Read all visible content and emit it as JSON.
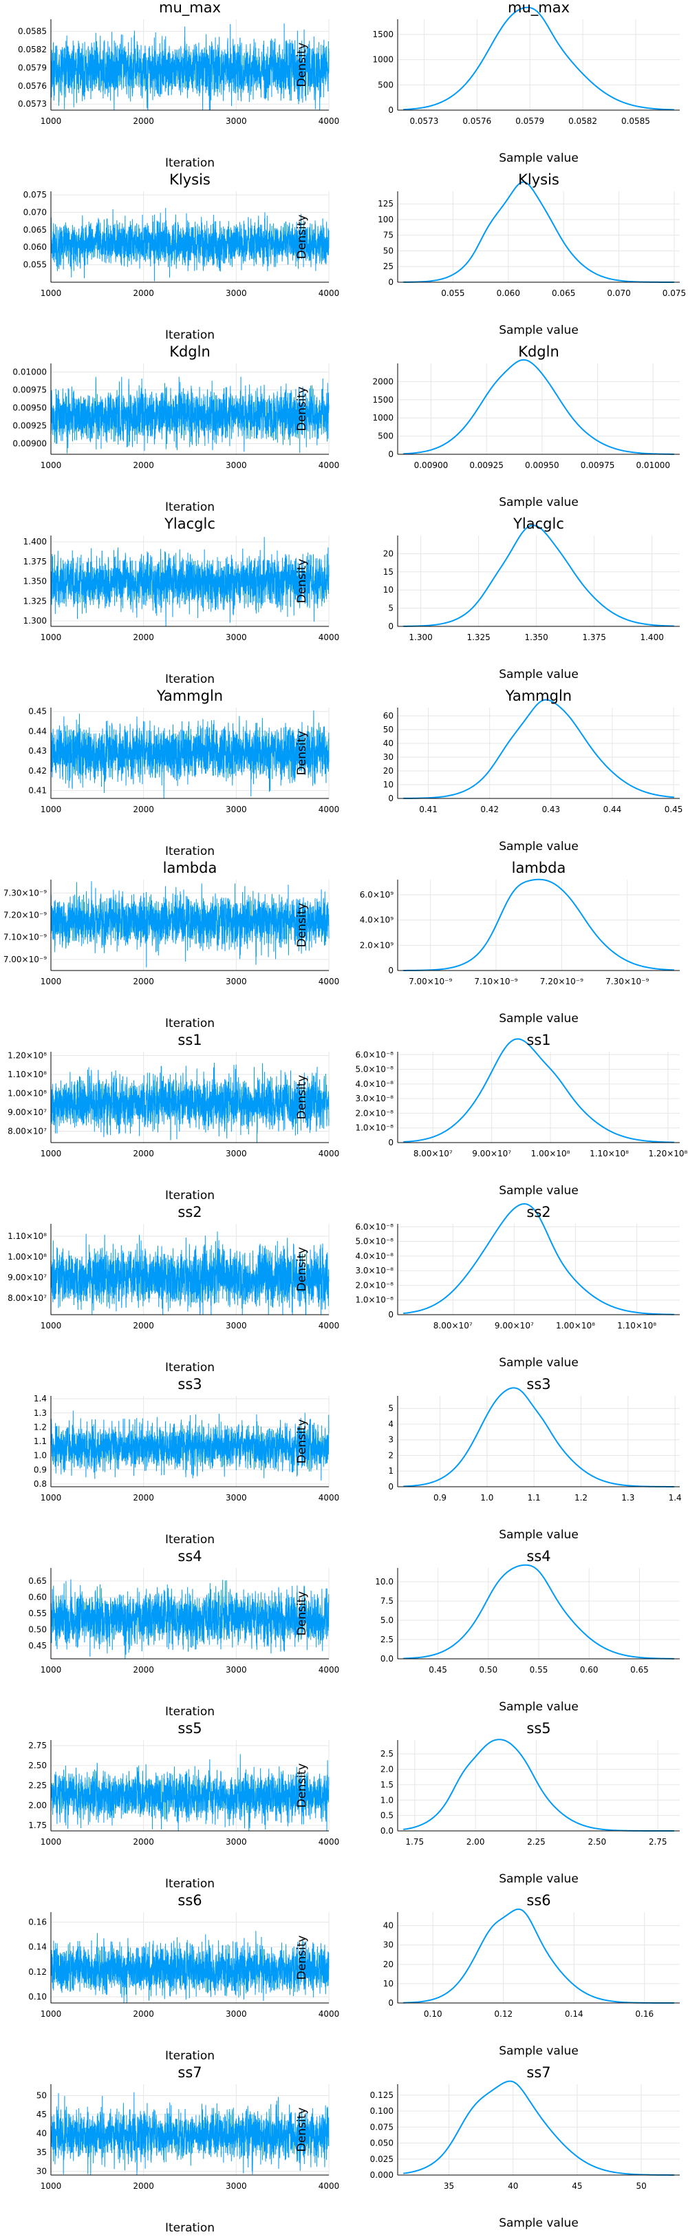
{
  "colors": {
    "series": "#009af9",
    "grid": "#e6e6e6",
    "axis": "#000000"
  },
  "chart_data": [
    {
      "param": "mu_max",
      "trace": {
        "type": "line",
        "title": "mu_max",
        "xlabel": "Iteration",
        "xlim": [
          1000,
          4000
        ],
        "xticks": [
          1000,
          2000,
          3000,
          4000
        ],
        "ylim": [
          0.0572,
          0.0587
        ],
        "ytick_labels": [
          "0.0573",
          "0.0576",
          "0.0579",
          "0.0582",
          "0.0585"
        ],
        "ytick_values": [
          0.0573,
          0.0576,
          0.0579,
          0.0582,
          0.0585
        ],
        "mean": 0.05787,
        "sd": 0.00022
      },
      "density": {
        "type": "line",
        "title": "mu_max",
        "xlabel": "Sample value",
        "ylabel": "Density",
        "xlim": [
          0.05715,
          0.05875
        ],
        "xtick_labels": [
          "0.0573",
          "0.0576",
          "0.0579",
          "0.0582",
          "0.0585"
        ],
        "xtick_values": [
          0.0573,
          0.0576,
          0.0579,
          0.0582,
          0.0585
        ],
        "ylim": [
          0,
          1800
        ],
        "ytick_labels": [
          "0",
          "500",
          "1000",
          "1500"
        ],
        "ytick_values": [
          0,
          500,
          1000,
          1500
        ],
        "peak_x": 0.05787,
        "peak_y": 1700,
        "spread": 0.00023
      }
    },
    {
      "param": "Klysis",
      "trace": {
        "type": "line",
        "title": "Klysis",
        "xlabel": "Iteration",
        "xlim": [
          1000,
          4000
        ],
        "xticks": [
          1000,
          2000,
          3000,
          4000
        ],
        "ylim": [
          0.05,
          0.076
        ],
        "ytick_labels": [
          "0.055",
          "0.060",
          "0.065",
          "0.070",
          "0.075"
        ],
        "ytick_values": [
          0.055,
          0.06,
          0.065,
          0.07,
          0.075
        ],
        "mean": 0.061,
        "sd": 0.003
      },
      "density": {
        "type": "line",
        "title": "Klysis",
        "xlabel": "Sample value",
        "ylabel": "Density",
        "xlim": [
          0.05,
          0.0755
        ],
        "xtick_labels": [
          "0.055",
          "0.060",
          "0.065",
          "0.070",
          "0.075"
        ],
        "xtick_values": [
          0.055,
          0.06,
          0.065,
          0.07,
          0.075
        ],
        "ylim": [
          0,
          145
        ],
        "ytick_labels": [
          "0",
          "25",
          "50",
          "75",
          "100",
          "125"
        ],
        "ytick_values": [
          0,
          25,
          50,
          75,
          100,
          125
        ],
        "peak_x": 0.061,
        "peak_y": 135,
        "spread": 0.0029
      }
    },
    {
      "param": "Kdgln",
      "trace": {
        "type": "line",
        "title": "Kdgln",
        "xlabel": "Iteration",
        "xlim": [
          1000,
          4000
        ],
        "xticks": [
          1000,
          2000,
          3000,
          4000
        ],
        "ylim": [
          0.00885,
          0.01012
        ],
        "ytick_labels": [
          "0.00900",
          "0.00925",
          "0.00950",
          "0.00975",
          "0.01000"
        ],
        "ytick_values": [
          0.009,
          0.00925,
          0.0095,
          0.00975,
          0.01
        ],
        "mean": 0.00939,
        "sd": 0.00017
      },
      "density": {
        "type": "line",
        "title": "Kdgln",
        "xlabel": "Sample value",
        "ylabel": "Density",
        "xlim": [
          0.00885,
          0.01012
        ],
        "xtick_labels": [
          "0.00900",
          "0.00925",
          "0.00950",
          "0.00975",
          "0.01000"
        ],
        "xtick_values": [
          0.009,
          0.00925,
          0.0095,
          0.00975,
          0.01
        ],
        "ylim": [
          0,
          2500
        ],
        "ytick_labels": [
          "0",
          "500",
          "1000",
          "1500",
          "2000"
        ],
        "ytick_values": [
          0,
          500,
          1000,
          1500,
          2000
        ],
        "peak_x": 0.00939,
        "peak_y": 2300,
        "spread": 0.00017
      }
    },
    {
      "param": "Ylacglc",
      "trace": {
        "type": "line",
        "title": "Ylacglc",
        "xlabel": "Iteration",
        "xlim": [
          1000,
          4000
        ],
        "xticks": [
          1000,
          2000,
          3000,
          4000
        ],
        "ylim": [
          1.293,
          1.408
        ],
        "ytick_labels": [
          "1.300",
          "1.325",
          "1.350",
          "1.375",
          "1.400"
        ],
        "ytick_values": [
          1.3,
          1.325,
          1.35,
          1.375,
          1.4
        ],
        "mean": 1.349,
        "sd": 0.016
      },
      "density": {
        "type": "line",
        "title": "Ylacglc",
        "xlabel": "Sample value",
        "ylabel": "Density",
        "xlim": [
          1.29,
          1.412
        ],
        "xtick_labels": [
          "1.300",
          "1.325",
          "1.350",
          "1.375",
          "1.400"
        ],
        "xtick_values": [
          1.3,
          1.325,
          1.35,
          1.375,
          1.4
        ],
        "ylim": [
          0,
          25
        ],
        "ytick_labels": [
          "0",
          "5",
          "10",
          "15",
          "20"
        ],
        "ytick_values": [
          0,
          5,
          10,
          15,
          20
        ],
        "peak_x": 1.349,
        "peak_y": 23.5,
        "spread": 0.016
      }
    },
    {
      "param": "Yammgln",
      "trace": {
        "type": "line",
        "title": "Yammgln",
        "xlabel": "Iteration",
        "xlim": [
          1000,
          4000
        ],
        "xticks": [
          1000,
          2000,
          3000,
          4000
        ],
        "ylim": [
          0.406,
          0.452
        ],
        "ytick_labels": [
          "0.41",
          "0.42",
          "0.43",
          "0.44",
          "0.45"
        ],
        "ytick_values": [
          0.41,
          0.42,
          0.43,
          0.44,
          0.45
        ],
        "mean": 0.4292,
        "sd": 0.0065
      },
      "density": {
        "type": "line",
        "title": "Yammgln",
        "xlabel": "Sample value",
        "ylabel": "Density",
        "xlim": [
          0.405,
          0.451
        ],
        "xtick_labels": [
          "0.41",
          "0.42",
          "0.43",
          "0.44",
          "0.45"
        ],
        "xtick_values": [
          0.41,
          0.42,
          0.43,
          0.44,
          0.45
        ],
        "ylim": [
          0,
          66
        ],
        "ytick_labels": [
          "0",
          "10",
          "20",
          "30",
          "40",
          "50",
          "60"
        ],
        "ytick_values": [
          0,
          10,
          20,
          30,
          40,
          50,
          60
        ],
        "peak_x": 0.4292,
        "peak_y": 62,
        "spread": 0.0064
      }
    },
    {
      "param": "lambda",
      "trace": {
        "type": "line",
        "title": "lambda",
        "xlabel": "Iteration",
        "xlim": [
          1000,
          4000
        ],
        "xticks": [
          1000,
          2000,
          3000,
          4000
        ],
        "ylim": [
          6.95e-09,
          7.36e-09
        ],
        "ytick_labels": [
          "7.00×10⁻⁹",
          "7.10×10⁻⁹",
          "7.20×10⁻⁹",
          "7.30×10⁻⁹"
        ],
        "ytick_values": [
          7e-09,
          7.1e-09,
          7.2e-09,
          7.3e-09
        ],
        "mean": 7.17e-09,
        "sd": 5.5e-11
      },
      "density": {
        "type": "line",
        "title": "lambda",
        "xlabel": "Sample value",
        "ylabel": "Density",
        "xlim": [
          6.95e-09,
          7.38e-09
        ],
        "xtick_labels": [
          "7.00×10⁻⁹",
          "7.10×10⁻⁹",
          "7.20×10⁻⁹",
          "7.30×10⁻⁹"
        ],
        "xtick_values": [
          7e-09,
          7.1e-09,
          7.2e-09,
          7.3e-09
        ],
        "ylim": [
          0,
          7200000000.0
        ],
        "ytick_labels": [
          "0",
          "2.0×10⁹",
          "4.0×10⁹",
          "6.0×10⁹"
        ],
        "ytick_values": [
          0,
          2000000000.0,
          4000000000.0,
          6000000000.0
        ],
        "peak_x": 7.17e-09,
        "peak_y": 6800000000.0,
        "spread": 5.6e-11
      }
    },
    {
      "param": "ss1",
      "trace": {
        "type": "line",
        "title": "ss1",
        "xlabel": "Iteration",
        "xlim": [
          1000,
          4000
        ],
        "xticks": [
          1000,
          2000,
          3000,
          4000
        ],
        "ylim": [
          74000000.0,
          122000000.0
        ],
        "ytick_labels": [
          "8.00×10⁷",
          "9.00×10⁷",
          "1.00×10⁸",
          "1.10×10⁸",
          "1.20×10⁸"
        ],
        "ytick_values": [
          80000000.0,
          90000000.0,
          100000000.0,
          110000000.0,
          120000000.0
        ],
        "mean": 95000000.0,
        "sd": 6500000.0
      },
      "density": {
        "type": "line",
        "title": "ss1",
        "xlabel": "Sample value",
        "ylabel": "Density",
        "xlim": [
          74000000.0,
          122000000.0
        ],
        "xtick_labels": [
          "8.00×10⁷",
          "9.00×10⁷",
          "1.00×10⁸",
          "1.10×10⁸",
          "1.20×10⁸"
        ],
        "xtick_values": [
          80000000.0,
          90000000.0,
          100000000.0,
          110000000.0,
          120000000.0
        ],
        "ylim": [
          0,
          6.2e-08
        ],
        "ytick_labels": [
          "0",
          "1.0×10⁻⁸",
          "2.0×10⁻⁸",
          "3.0×10⁻⁸",
          "4.0×10⁻⁸",
          "5.0×10⁻⁸",
          "6.0×10⁻⁸"
        ],
        "ytick_values": [
          0,
          1e-08,
          2e-08,
          3e-08,
          4e-08,
          5e-08,
          6e-08
        ],
        "peak_x": 95000000.0,
        "peak_y": 5.9e-08,
        "spread": 6800000.0
      }
    },
    {
      "param": "ss2",
      "trace": {
        "type": "line",
        "title": "ss2",
        "xlabel": "Iteration",
        "xlim": [
          1000,
          4000
        ],
        "xticks": [
          1000,
          2000,
          3000,
          4000
        ],
        "ylim": [
          72000000.0,
          116000000.0
        ],
        "ytick_labels": [
          "8.00×10⁷",
          "9.00×10⁷",
          "1.00×10⁸",
          "1.10×10⁸"
        ],
        "ytick_values": [
          80000000.0,
          90000000.0,
          100000000.0,
          110000000.0
        ],
        "mean": 90000000.0,
        "sd": 6500000.0
      },
      "density": {
        "type": "line",
        "title": "ss2",
        "xlabel": "Sample value",
        "ylabel": "Density",
        "xlim": [
          71000000.0,
          117000000.0
        ],
        "xtick_labels": [
          "8.00×10⁷",
          "9.00×10⁷",
          "1.00×10⁸",
          "1.10×10⁸"
        ],
        "xtick_values": [
          80000000.0,
          90000000.0,
          100000000.0,
          110000000.0
        ],
        "ylim": [
          0,
          6.2e-08
        ],
        "ytick_labels": [
          "0",
          "1.0×10⁻⁸",
          "2.0×10⁻⁸",
          "3.0×10⁻⁸",
          "4.0×10⁻⁸",
          "5.0×10⁻⁸",
          "6.0×10⁻⁸"
        ],
        "ytick_values": [
          0,
          1e-08,
          2e-08,
          3e-08,
          4e-08,
          5e-08,
          6e-08
        ],
        "peak_x": 90000000.0,
        "peak_y": 6e-08,
        "spread": 6600000.0
      }
    },
    {
      "param": "ss3",
      "trace": {
        "type": "line",
        "title": "ss3",
        "xlabel": "Iteration",
        "xlim": [
          1000,
          4000
        ],
        "xticks": [
          1000,
          2000,
          3000,
          4000
        ],
        "ylim": [
          0.78,
          1.42
        ],
        "ytick_labels": [
          "0.8",
          "0.9",
          "1.0",
          "1.1",
          "1.2",
          "1.3",
          "1.4"
        ],
        "ytick_values": [
          0.8,
          0.9,
          1.0,
          1.1,
          1.2,
          1.3,
          1.4
        ],
        "mean": 1.06,
        "sd": 0.075
      },
      "density": {
        "type": "line",
        "title": "ss3",
        "xlabel": "Sample value",
        "ylabel": "Density",
        "xlim": [
          0.81,
          1.41
        ],
        "xtick_labels": [
          "0.9",
          "1.0",
          "1.1",
          "1.2",
          "1.3",
          "1.4"
        ],
        "xtick_values": [
          0.9,
          1.0,
          1.1,
          1.2,
          1.3,
          1.4
        ],
        "ylim": [
          0,
          5.8
        ],
        "ytick_labels": [
          "0",
          "1",
          "2",
          "3",
          "4",
          "5"
        ],
        "ytick_values": [
          0,
          1,
          2,
          3,
          4,
          5
        ],
        "peak_x": 1.055,
        "peak_y": 5.4,
        "spread": 0.075
      }
    },
    {
      "param": "ss4",
      "trace": {
        "type": "line",
        "title": "ss4",
        "xlabel": "Iteration",
        "xlim": [
          1000,
          4000
        ],
        "xticks": [
          1000,
          2000,
          3000,
          4000
        ],
        "ylim": [
          0.41,
          0.69
        ],
        "ytick_labels": [
          "0.45",
          "0.50",
          "0.55",
          "0.60",
          "0.65"
        ],
        "ytick_values": [
          0.45,
          0.5,
          0.55,
          0.6,
          0.65
        ],
        "mean": 0.535,
        "sd": 0.038
      },
      "density": {
        "type": "line",
        "title": "ss4",
        "xlabel": "Sample value",
        "ylabel": "Density",
        "xlim": [
          0.41,
          0.69
        ],
        "xtick_labels": [
          "0.45",
          "0.50",
          "0.55",
          "0.60",
          "0.65"
        ],
        "xtick_values": [
          0.45,
          0.5,
          0.55,
          0.6,
          0.65
        ],
        "ylim": [
          0,
          11.8
        ],
        "ytick_labels": [
          "0.0",
          "2.5",
          "5.0",
          "7.5",
          "10.0"
        ],
        "ytick_values": [
          0,
          2.5,
          5,
          7.5,
          10
        ],
        "peak_x": 0.532,
        "peak_y": 11,
        "spread": 0.037
      }
    },
    {
      "param": "ss5",
      "trace": {
        "type": "line",
        "title": "ss5",
        "xlabel": "Iteration",
        "xlim": [
          1000,
          4000
        ],
        "xticks": [
          1000,
          2000,
          3000,
          4000
        ],
        "ylim": [
          1.68,
          2.82
        ],
        "ytick_labels": [
          "1.75",
          "2.00",
          "2.25",
          "2.50",
          "2.75"
        ],
        "ytick_values": [
          1.75,
          2.0,
          2.25,
          2.5,
          2.75
        ],
        "mean": 2.12,
        "sd": 0.14
      },
      "density": {
        "type": "line",
        "title": "ss5",
        "xlabel": "Sample value",
        "ylabel": "Density",
        "xlim": [
          1.68,
          2.84
        ],
        "xtick_labels": [
          "1.75",
          "2.00",
          "2.25",
          "2.50",
          "2.75"
        ],
        "xtick_values": [
          1.75,
          2.0,
          2.25,
          2.5,
          2.75
        ],
        "ylim": [
          0,
          2.95
        ],
        "ytick_labels": [
          "0.0",
          "0.5",
          "1.0",
          "1.5",
          "2.0",
          "2.5"
        ],
        "ytick_values": [
          0,
          0.5,
          1,
          1.5,
          2,
          2.5
        ],
        "peak_x": 2.08,
        "peak_y": 2.75,
        "spread": 0.14
      }
    },
    {
      "param": "ss6",
      "trace": {
        "type": "line",
        "title": "ss6",
        "xlabel": "Iteration",
        "xlim": [
          1000,
          4000
        ],
        "xticks": [
          1000,
          2000,
          3000,
          4000
        ],
        "ylim": [
          0.095,
          0.168
        ],
        "ytick_labels": [
          "0.10",
          "0.12",
          "0.14",
          "0.16"
        ],
        "ytick_values": [
          0.1,
          0.12,
          0.14,
          0.16
        ],
        "mean": 0.122,
        "sd": 0.0095
      },
      "density": {
        "type": "line",
        "title": "ss6",
        "xlabel": "Sample value",
        "ylabel": "Density",
        "xlim": [
          0.09,
          0.17
        ],
        "xtick_labels": [
          "0.10",
          "0.12",
          "0.14",
          "0.16"
        ],
        "xtick_values": [
          0.1,
          0.12,
          0.14,
          0.16
        ],
        "ylim": [
          0,
          47
        ],
        "ytick_labels": [
          "0",
          "10",
          "20",
          "30",
          "40"
        ],
        "ytick_values": [
          0,
          10,
          20,
          30,
          40
        ],
        "peak_x": 0.122,
        "peak_y": 43,
        "spread": 0.0093
      }
    },
    {
      "param": "ss7",
      "trace": {
        "type": "line",
        "title": "ss7",
        "xlabel": "Iteration",
        "xlim": [
          1000,
          4000
        ],
        "xticks": [
          1000,
          2000,
          3000,
          4000
        ],
        "ylim": [
          29,
          53
        ],
        "ytick_labels": [
          "30",
          "35",
          "40",
          "45",
          "50"
        ],
        "ytick_values": [
          30,
          35,
          40,
          45,
          50
        ],
        "mean": 39.5,
        "sd": 3.0
      },
      "density": {
        "type": "line",
        "title": "ss7",
        "xlabel": "Sample value",
        "ylabel": "Density",
        "xlim": [
          31,
          53
        ],
        "xtick_labels": [
          "35",
          "40",
          "45",
          "50"
        ],
        "xtick_values": [
          35,
          40,
          45,
          50
        ],
        "ylim": [
          0,
          0.142
        ],
        "ytick_labels": [
          "0.000",
          "0.025",
          "0.050",
          "0.075",
          "0.100",
          "0.125"
        ],
        "ytick_values": [
          0,
          0.025,
          0.05,
          0.075,
          0.1,
          0.125
        ],
        "peak_x": 39.3,
        "peak_y": 0.133,
        "spread": 2.95
      }
    }
  ]
}
